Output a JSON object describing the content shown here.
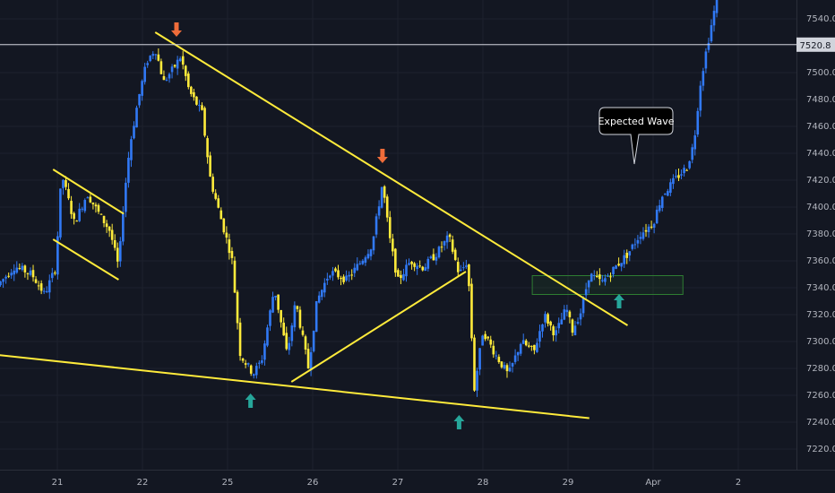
{
  "chart_data": {
    "type": "candlestick",
    "y_axis": {
      "ticks": [
        "7540.0",
        "7520.0",
        "7500.0",
        "7480.0",
        "7460.0",
        "7440.0",
        "7420.0",
        "7400.0",
        "7380.0",
        "7360.0",
        "7340.0",
        "7320.0",
        "7300.0",
        "7280.0",
        "7260.0",
        "7240.0",
        "7220.0"
      ],
      "tick_values": [
        7540,
        7520,
        7500,
        7480,
        7460,
        7440,
        7420,
        7400,
        7380,
        7360,
        7340,
        7320,
        7300,
        7280,
        7260,
        7240,
        7220
      ],
      "range": [
        7213,
        7553
      ]
    },
    "x_axis": {
      "ticks": [
        "21",
        "22",
        "25",
        "26",
        "27",
        "28",
        "29",
        "Apr",
        "2"
      ],
      "range_days": [
        0,
        8.5
      ]
    },
    "price_line": {
      "value": 7520.8,
      "label": "7520.8",
      "color": "#d1d4dc"
    },
    "annotations": {
      "callout": {
        "text": "Expected Wave",
        "x_day": 6.8,
        "y": 7464
      }
    },
    "colors": {
      "background": "#131722",
      "up_candle": "#3179f5",
      "down_candle": "#ffeb3b",
      "trendline": "#ffeb3b",
      "arrow_up": "#26a69a",
      "arrow_down": "#ef6c3a",
      "zone": "#2e7d32",
      "grid": "#1e222d"
    },
    "trendlines": [
      {
        "name": "support-lower",
        "from": [
          -0.7,
          7290
        ],
        "to": [
          6.25,
          7243
        ]
      },
      {
        "name": "resistance-upper",
        "from": [
          1.15,
          7530
        ],
        "to": [
          6.7,
          7312
        ]
      },
      {
        "name": "channel-top",
        "from": [
          -0.05,
          7428
        ],
        "to": [
          0.78,
          7395
        ]
      },
      {
        "name": "channel-bottom",
        "from": [
          -0.05,
          7376
        ],
        "to": [
          0.72,
          7346
        ]
      },
      {
        "name": "rising-support",
        "from": [
          2.75,
          7270
        ],
        "to": [
          4.8,
          7352
        ]
      }
    ],
    "zones": [
      {
        "name": "breakout-zone",
        "x_from": 5.58,
        "x_to": 7.35,
        "y_from": 7335,
        "y_to": 7349
      }
    ],
    "arrows": [
      {
        "dir": "down",
        "x_day": 1.4,
        "y": 7532
      },
      {
        "dir": "down",
        "x_day": 3.82,
        "y": 7438
      },
      {
        "dir": "up",
        "x_day": 2.27,
        "y": 7256
      },
      {
        "dir": "up",
        "x_day": 4.72,
        "y": 7240
      },
      {
        "dir": "up",
        "x_day": 6.6,
        "y": 7330
      }
    ],
    "path_keypoints": [
      [
        -0.7,
        7342
      ],
      [
        -0.5,
        7356
      ],
      [
        -0.3,
        7350
      ],
      [
        -0.15,
        7335
      ],
      [
        -0.02,
        7355
      ],
      [
        0.05,
        7425
      ],
      [
        0.2,
        7388
      ],
      [
        0.35,
        7410
      ],
      [
        0.5,
        7394
      ],
      [
        0.62,
        7382
      ],
      [
        0.72,
        7355
      ],
      [
        0.78,
        7405
      ],
      [
        0.85,
        7445
      ],
      [
        0.95,
        7480
      ],
      [
        1.05,
        7508
      ],
      [
        1.15,
        7518
      ],
      [
        1.25,
        7493
      ],
      [
        1.35,
        7502
      ],
      [
        1.45,
        7512
      ],
      [
        1.55,
        7486
      ],
      [
        1.7,
        7470
      ],
      [
        1.8,
        7420
      ],
      [
        1.95,
        7385
      ],
      [
        2.05,
        7362
      ],
      [
        2.15,
        7290
      ],
      [
        2.3,
        7276
      ],
      [
        2.4,
        7286
      ],
      [
        2.55,
        7340
      ],
      [
        2.7,
        7290
      ],
      [
        2.8,
        7330
      ],
      [
        2.95,
        7280
      ],
      [
        3.05,
        7330
      ],
      [
        3.2,
        7352
      ],
      [
        3.4,
        7346
      ],
      [
        3.55,
        7358
      ],
      [
        3.7,
        7372
      ],
      [
        3.82,
        7418
      ],
      [
        3.9,
        7378
      ],
      [
        4.0,
        7345
      ],
      [
        4.15,
        7360
      ],
      [
        4.3,
        7355
      ],
      [
        4.45,
        7365
      ],
      [
        4.6,
        7378
      ],
      [
        4.72,
        7350
      ],
      [
        4.82,
        7360
      ],
      [
        4.9,
        7265
      ],
      [
        5.0,
        7308
      ],
      [
        5.15,
        7290
      ],
      [
        5.3,
        7275
      ],
      [
        5.45,
        7300
      ],
      [
        5.6,
        7292
      ],
      [
        5.72,
        7320
      ],
      [
        5.85,
        7305
      ],
      [
        5.98,
        7325
      ],
      [
        6.05,
        7308
      ],
      [
        6.15,
        7322
      ],
      [
        6.25,
        7350
      ],
      [
        6.4,
        7344
      ],
      [
        6.55,
        7355
      ],
      [
        6.7,
        7365
      ],
      [
        6.85,
        7380
      ],
      [
        7.0,
        7388
      ],
      [
        7.1,
        7408
      ],
      [
        7.25,
        7420
      ],
      [
        7.4,
        7430
      ],
      [
        7.48,
        7448
      ],
      [
        7.55,
        7490
      ],
      [
        7.62,
        7515
      ],
      [
        7.7,
        7540
      ],
      [
        7.75,
        7556
      ]
    ]
  }
}
